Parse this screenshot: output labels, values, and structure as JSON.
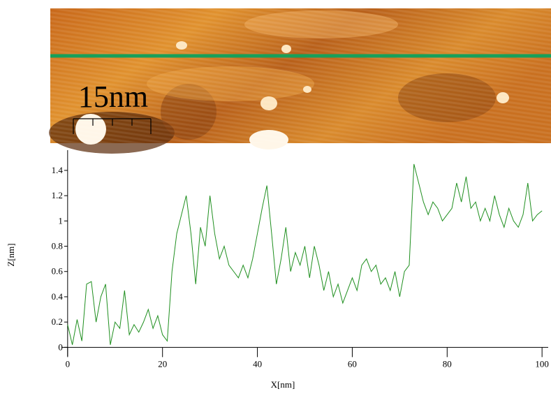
{
  "image": {
    "scale_bar_label": "15nm"
  },
  "chart_data": {
    "type": "line",
    "xlabel": "X[nm]",
    "ylabel": "Z[nm]",
    "x": [
      0,
      1,
      2,
      3,
      4,
      5,
      6,
      7,
      8,
      9,
      10,
      11,
      12,
      13,
      14,
      15,
      16,
      17,
      18,
      19,
      20,
      21,
      22,
      23,
      24,
      25,
      26,
      27,
      28,
      29,
      30,
      31,
      32,
      33,
      34,
      35,
      36,
      37,
      38,
      39,
      40,
      41,
      42,
      43,
      44,
      45,
      46,
      47,
      48,
      49,
      50,
      51,
      52,
      53,
      54,
      55,
      56,
      57,
      58,
      59,
      60,
      61,
      62,
      63,
      64,
      65,
      66,
      67,
      68,
      69,
      70,
      71,
      72,
      73,
      74,
      75,
      76,
      77,
      78,
      79,
      80,
      81,
      82,
      83,
      84,
      85,
      86,
      87,
      88,
      89,
      90,
      91,
      92,
      93,
      94,
      95,
      96,
      97,
      98,
      99,
      100
    ],
    "series": [
      {
        "color": "#1f8f1f",
        "values": [
          0.18,
          0.02,
          0.22,
          0.05,
          0.5,
          0.52,
          0.2,
          0.4,
          0.5,
          0.02,
          0.2,
          0.15,
          0.45,
          0.1,
          0.18,
          0.12,
          0.2,
          0.3,
          0.15,
          0.25,
          0.1,
          0.05,
          0.6,
          0.9,
          1.05,
          1.2,
          0.9,
          0.5,
          0.95,
          0.8,
          1.2,
          0.9,
          0.7,
          0.8,
          0.65,
          0.6,
          0.55,
          0.65,
          0.55,
          0.7,
          0.9,
          1.1,
          1.28,
          0.9,
          0.5,
          0.7,
          0.95,
          0.6,
          0.75,
          0.65,
          0.8,
          0.55,
          0.8,
          0.65,
          0.45,
          0.6,
          0.4,
          0.5,
          0.35,
          0.45,
          0.55,
          0.45,
          0.65,
          0.7,
          0.6,
          0.65,
          0.5,
          0.55,
          0.45,
          0.6,
          0.4,
          0.6,
          0.65,
          1.45,
          1.3,
          1.15,
          1.05,
          1.15,
          1.1,
          1.0,
          1.05,
          1.1,
          1.3,
          1.15,
          1.35,
          1.1,
          1.15,
          1.0,
          1.1,
          1.0,
          1.2,
          1.05,
          0.95,
          1.1,
          1.0,
          0.95,
          1.05,
          1.3,
          1.0,
          1.05,
          1.08
        ]
      }
    ],
    "xlim": [
      -1.3,
      101.3
    ],
    "xticks": [
      0,
      20,
      40,
      60,
      80,
      100
    ],
    "ylim": [
      -0.07,
      1.56
    ],
    "yticks": [
      0,
      0.2,
      0.4,
      0.6,
      0.8,
      1,
      1.2,
      1.4
    ]
  }
}
